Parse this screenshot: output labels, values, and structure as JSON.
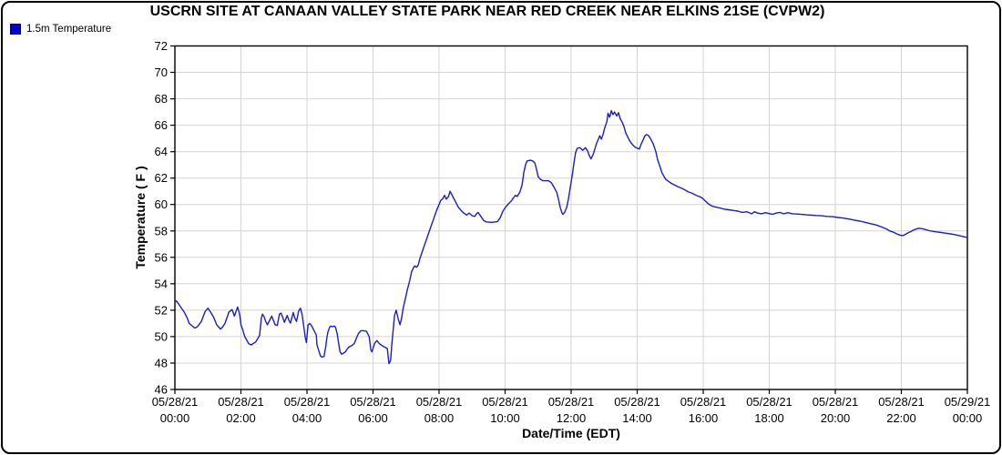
{
  "window": {
    "type": "chart-window"
  },
  "chart_data": {
    "type": "line",
    "title": "USCRN SITE AT CANAAN VALLEY STATE PARK NEAR RED CREEK NEAR ELKINS 21SE (CVPW2)",
    "xlabel": "Date/Time (EDT)",
    "ylabel": "Temperature ( F )",
    "ylim": [
      46,
      72
    ],
    "y_tick_step": 2,
    "grid": true,
    "grid_color": "#d4d4d4",
    "axis_color": "#000000",
    "legend_position": "top-left",
    "y_ticks": [
      72,
      70,
      68,
      66,
      64,
      62,
      60,
      58,
      56,
      54,
      52,
      50,
      48,
      46
    ],
    "x_ticks": [
      {
        "minutes": 0,
        "date": "05/28/21",
        "time": "00:00"
      },
      {
        "minutes": 120,
        "date": "05/28/21",
        "time": "02:00"
      },
      {
        "minutes": 240,
        "date": "05/28/21",
        "time": "04:00"
      },
      {
        "minutes": 360,
        "date": "05/28/21",
        "time": "06:00"
      },
      {
        "minutes": 480,
        "date": "05/28/21",
        "time": "08:00"
      },
      {
        "minutes": 600,
        "date": "05/28/21",
        "time": "10:00"
      },
      {
        "minutes": 720,
        "date": "05/28/21",
        "time": "12:00"
      },
      {
        "minutes": 840,
        "date": "05/28/21",
        "time": "14:00"
      },
      {
        "minutes": 960,
        "date": "05/28/21",
        "time": "16:00"
      },
      {
        "minutes": 1080,
        "date": "05/28/21",
        "time": "18:00"
      },
      {
        "minutes": 1200,
        "date": "05/28/21",
        "time": "20:00"
      },
      {
        "minutes": 1320,
        "date": "05/28/21",
        "time": "22:00"
      },
      {
        "minutes": 1440,
        "date": "05/29/21",
        "time": "00:00"
      }
    ],
    "x_unit": "minutes since 05/28/21 00:00 EDT",
    "series": [
      {
        "name": "1.5m Temperature",
        "color": "#1c1cc8",
        "swatch_color": "#0000cc",
        "points": [
          [
            0,
            52.6
          ],
          [
            3,
            52.7
          ],
          [
            8,
            52.4
          ],
          [
            17,
            51.85
          ],
          [
            22,
            51.45
          ],
          [
            26,
            51.0
          ],
          [
            36,
            50.65
          ],
          [
            41,
            50.75
          ],
          [
            48,
            51.15
          ],
          [
            55,
            51.9
          ],
          [
            60,
            52.15
          ],
          [
            65,
            51.85
          ],
          [
            70,
            51.5
          ],
          [
            76,
            50.9
          ],
          [
            83,
            50.57
          ],
          [
            86,
            50.7
          ],
          [
            91,
            51.0
          ],
          [
            98,
            51.85
          ],
          [
            104,
            52.05
          ],
          [
            108,
            51.55
          ],
          [
            114,
            52.25
          ],
          [
            118,
            51.6
          ],
          [
            120,
            50.9
          ],
          [
            123,
            50.55
          ],
          [
            127,
            50.0
          ],
          [
            134,
            49.47
          ],
          [
            139,
            49.37
          ],
          [
            142,
            49.47
          ],
          [
            147,
            49.6
          ],
          [
            154,
            50.1
          ],
          [
            157,
            51.4
          ],
          [
            159,
            51.7
          ],
          [
            162,
            51.5
          ],
          [
            165,
            51.15
          ],
          [
            168,
            50.9
          ],
          [
            173,
            51.3
          ],
          [
            176,
            51.55
          ],
          [
            182,
            50.9
          ],
          [
            186,
            50.85
          ],
          [
            190,
            51.72
          ],
          [
            193,
            51.78
          ],
          [
            196,
            51.45
          ],
          [
            199,
            51.08
          ],
          [
            204,
            51.6
          ],
          [
            207,
            51.25
          ],
          [
            210,
            51.02
          ],
          [
            215,
            51.83
          ],
          [
            218,
            51.4
          ],
          [
            221,
            51.15
          ],
          [
            225,
            51.95
          ],
          [
            228,
            52.15
          ],
          [
            231,
            51.7
          ],
          [
            234,
            50.8
          ],
          [
            237,
            49.9
          ],
          [
            239,
            49.55
          ],
          [
            242,
            50.9
          ],
          [
            245,
            51.0
          ],
          [
            248,
            50.85
          ],
          [
            250,
            50.7
          ],
          [
            253,
            50.45
          ],
          [
            257,
            50.1
          ],
          [
            258,
            49.4
          ],
          [
            262,
            48.85
          ],
          [
            265,
            48.5
          ],
          [
            268,
            48.45
          ],
          [
            271,
            48.5
          ],
          [
            274,
            49.2
          ],
          [
            276,
            49.9
          ],
          [
            278,
            50.35
          ],
          [
            281,
            50.7
          ],
          [
            283,
            50.8
          ],
          [
            286,
            50.75
          ],
          [
            290,
            50.8
          ],
          [
            292,
            50.7
          ],
          [
            295,
            50.2
          ],
          [
            298,
            49.4
          ],
          [
            300,
            48.85
          ],
          [
            303,
            48.67
          ],
          [
            306,
            48.75
          ],
          [
            310,
            48.85
          ],
          [
            312,
            49.0
          ],
          [
            316,
            49.2
          ],
          [
            323,
            49.37
          ],
          [
            326,
            49.5
          ],
          [
            333,
            50.2
          ],
          [
            338,
            50.45
          ],
          [
            343,
            50.45
          ],
          [
            348,
            50.4
          ],
          [
            353,
            50.0
          ],
          [
            356,
            49.0
          ],
          [
            358,
            48.85
          ],
          [
            363,
            49.5
          ],
          [
            367,
            49.7
          ],
          [
            372,
            49.45
          ],
          [
            379,
            49.25
          ],
          [
            386,
            49.1
          ],
          [
            389,
            47.95
          ],
          [
            392,
            48.2
          ],
          [
            394,
            49.3
          ],
          [
            397,
            50.7
          ],
          [
            399,
            51.6
          ],
          [
            402,
            52.0
          ],
          [
            406,
            51.3
          ],
          [
            409,
            50.9
          ],
          [
            412,
            51.4
          ],
          [
            415,
            52.2
          ],
          [
            419,
            52.9
          ],
          [
            422,
            53.5
          ],
          [
            427,
            54.3
          ],
          [
            430,
            54.9
          ],
          [
            434,
            55.25
          ],
          [
            436,
            55.35
          ],
          [
            439,
            55.25
          ],
          [
            442,
            55.4
          ],
          [
            445,
            55.9
          ],
          [
            450,
            56.5
          ],
          [
            455,
            57.1
          ],
          [
            460,
            57.7
          ],
          [
            465,
            58.3
          ],
          [
            470,
            58.9
          ],
          [
            475,
            59.5
          ],
          [
            480,
            60.0
          ],
          [
            483,
            60.3
          ],
          [
            487,
            60.45
          ],
          [
            490,
            60.7
          ],
          [
            493,
            60.4
          ],
          [
            497,
            60.6
          ],
          [
            500,
            61.0
          ],
          [
            505,
            60.6
          ],
          [
            510,
            60.2
          ],
          [
            515,
            59.8
          ],
          [
            520,
            59.55
          ],
          [
            525,
            59.35
          ],
          [
            530,
            59.2
          ],
          [
            535,
            59.35
          ],
          [
            540,
            59.15
          ],
          [
            545,
            59.1
          ],
          [
            548,
            59.3
          ],
          [
            551,
            59.4
          ],
          [
            556,
            59.1
          ],
          [
            561,
            58.8
          ],
          [
            566,
            58.68
          ],
          [
            576,
            58.65
          ],
          [
            586,
            58.7
          ],
          [
            591,
            59.0
          ],
          [
            596,
            59.5
          ],
          [
            601,
            59.8
          ],
          [
            606,
            60.05
          ],
          [
            611,
            60.25
          ],
          [
            616,
            60.55
          ],
          [
            619,
            60.7
          ],
          [
            622,
            60.6
          ],
          [
            627,
            60.95
          ],
          [
            631,
            61.5
          ],
          [
            634,
            62.4
          ],
          [
            637,
            63.0
          ],
          [
            640,
            63.3
          ],
          [
            646,
            63.35
          ],
          [
            650,
            63.3
          ],
          [
            654,
            63.15
          ],
          [
            657,
            62.7
          ],
          [
            660,
            62.1
          ],
          [
            664,
            61.9
          ],
          [
            669,
            61.8
          ],
          [
            679,
            61.8
          ],
          [
            684,
            61.65
          ],
          [
            689,
            61.3
          ],
          [
            694,
            60.9
          ],
          [
            697,
            60.4
          ],
          [
            700,
            59.8
          ],
          [
            703,
            59.4
          ],
          [
            705,
            59.25
          ],
          [
            708,
            59.4
          ],
          [
            712,
            59.8
          ],
          [
            715,
            60.4
          ],
          [
            718,
            61.2
          ],
          [
            722,
            62.2
          ],
          [
            725,
            63.1
          ],
          [
            728,
            63.9
          ],
          [
            731,
            64.25
          ],
          [
            736,
            64.3
          ],
          [
            741,
            64.1
          ],
          [
            746,
            64.3
          ],
          [
            750,
            64.05
          ],
          [
            753,
            63.7
          ],
          [
            756,
            63.45
          ],
          [
            760,
            63.8
          ],
          [
            763,
            64.2
          ],
          [
            766,
            64.6
          ],
          [
            770,
            65.0
          ],
          [
            772,
            65.2
          ],
          [
            775,
            64.95
          ],
          [
            778,
            65.3
          ],
          [
            781,
            65.8
          ],
          [
            785,
            66.3
          ],
          [
            787,
            66.9
          ],
          [
            790,
            66.6
          ],
          [
            793,
            67.1
          ],
          [
            796,
            66.8
          ],
          [
            799,
            67.0
          ],
          [
            803,
            66.7
          ],
          [
            806,
            66.95
          ],
          [
            809,
            66.5
          ],
          [
            813,
            66.2
          ],
          [
            816,
            65.9
          ],
          [
            819,
            65.45
          ],
          [
            823,
            65.1
          ],
          [
            826,
            64.85
          ],
          [
            831,
            64.55
          ],
          [
            836,
            64.35
          ],
          [
            841,
            64.25
          ],
          [
            844,
            64.2
          ],
          [
            847,
            64.55
          ],
          [
            851,
            64.9
          ],
          [
            854,
            65.2
          ],
          [
            857,
            65.3
          ],
          [
            861,
            65.2
          ],
          [
            864,
            65.0
          ],
          [
            869,
            64.6
          ],
          [
            874,
            64.0
          ],
          [
            877,
            63.4
          ],
          [
            882,
            62.8
          ],
          [
            885,
            62.4
          ],
          [
            889,
            62.1
          ],
          [
            892,
            61.9
          ],
          [
            897,
            61.75
          ],
          [
            902,
            61.6
          ],
          [
            907,
            61.5
          ],
          [
            914,
            61.35
          ],
          [
            920,
            61.25
          ],
          [
            927,
            61.1
          ],
          [
            933,
            60.95
          ],
          [
            940,
            60.85
          ],
          [
            947,
            60.7
          ],
          [
            953,
            60.6
          ],
          [
            958,
            60.5
          ],
          [
            963,
            60.3
          ],
          [
            968,
            60.1
          ],
          [
            973,
            59.95
          ],
          [
            978,
            59.85
          ],
          [
            983,
            59.8
          ],
          [
            990,
            59.74
          ],
          [
            998,
            59.65
          ],
          [
            1006,
            59.6
          ],
          [
            1015,
            59.55
          ],
          [
            1023,
            59.5
          ],
          [
            1031,
            59.4
          ],
          [
            1039,
            59.45
          ],
          [
            1048,
            59.3
          ],
          [
            1053,
            59.45
          ],
          [
            1059,
            59.35
          ],
          [
            1066,
            59.3
          ],
          [
            1073,
            59.38
          ],
          [
            1079,
            59.32
          ],
          [
            1086,
            59.25
          ],
          [
            1092,
            59.35
          ],
          [
            1099,
            59.4
          ],
          [
            1106,
            59.3
          ],
          [
            1114,
            59.38
          ],
          [
            1122,
            59.3
          ],
          [
            1131,
            59.28
          ],
          [
            1139,
            59.25
          ],
          [
            1147,
            59.22
          ],
          [
            1155,
            59.2
          ],
          [
            1165,
            59.17
          ],
          [
            1175,
            59.15
          ],
          [
            1185,
            59.1
          ],
          [
            1195,
            59.08
          ],
          [
            1205,
            59.02
          ],
          [
            1215,
            58.97
          ],
          [
            1225,
            58.9
          ],
          [
            1235,
            58.82
          ],
          [
            1245,
            58.74
          ],
          [
            1254,
            58.65
          ],
          [
            1264,
            58.55
          ],
          [
            1274,
            58.45
          ],
          [
            1284,
            58.3
          ],
          [
            1293,
            58.15
          ],
          [
            1299,
            58.0
          ],
          [
            1306,
            57.9
          ],
          [
            1313,
            57.75
          ],
          [
            1318,
            57.68
          ],
          [
            1323,
            57.65
          ],
          [
            1328,
            57.75
          ],
          [
            1332,
            57.85
          ],
          [
            1337,
            57.95
          ],
          [
            1344,
            58.1
          ],
          [
            1351,
            58.2
          ],
          [
            1357,
            58.18
          ],
          [
            1364,
            58.1
          ],
          [
            1371,
            58.02
          ],
          [
            1377,
            57.97
          ],
          [
            1384,
            57.93
          ],
          [
            1392,
            57.88
          ],
          [
            1400,
            57.83
          ],
          [
            1409,
            57.78
          ],
          [
            1417,
            57.72
          ],
          [
            1425,
            57.65
          ],
          [
            1432,
            57.58
          ],
          [
            1440,
            57.5
          ]
        ]
      }
    ]
  }
}
